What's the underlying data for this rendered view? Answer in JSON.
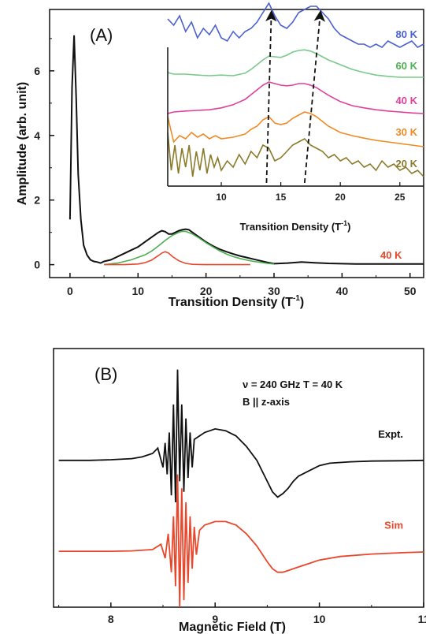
{
  "colors": {
    "black": "#111111",
    "red": "#e8472b",
    "green": "#4caf50",
    "light_green": "#78c98a",
    "blue": "#4a5fd0",
    "magenta": "#e0409a",
    "orange": "#f08a24",
    "olive": "#8a7a2a",
    "label_80K": "#4a5fd0",
    "label_60K": "#4caf50",
    "label_40K": "#e0409a",
    "label_30K": "#f08a24",
    "label_20K": "#8a7a2a"
  },
  "chart_data": [
    {
      "id": "A_main",
      "type": "line",
      "panel_label": "(A)",
      "xlabel": "Transition Density (T",
      "xlabel_sup": "-1",
      "xlabel_end": ")",
      "ylabel": "Amplitude (arb. unit)",
      "xlim": [
        -3,
        52
      ],
      "ylim": [
        -0.4,
        7.9
      ],
      "xticks": [
        0,
        10,
        20,
        30,
        40,
        50
      ],
      "yticks": [
        0,
        2,
        4,
        6
      ],
      "annotation": "40 K",
      "series": [
        {
          "color": "black",
          "x": [
            0,
            0.3,
            0.6,
            0.9,
            1.2,
            1.6,
            2.0,
            2.5,
            3.0,
            3.5,
            4.0,
            4.5,
            5.0,
            6,
            7,
            8,
            9,
            10,
            11,
            12,
            13,
            13.5,
            14,
            14.5,
            15,
            15.5,
            16,
            16.5,
            17,
            17.5,
            18,
            19,
            20,
            21,
            22,
            23,
            24,
            25,
            26,
            27,
            28,
            29,
            30,
            32,
            34,
            36,
            38,
            40,
            42,
            44,
            46,
            48,
            50,
            52
          ],
          "y": [
            1.4,
            5.5,
            7.1,
            5.2,
            2.8,
            1.4,
            0.6,
            0.3,
            0.15,
            0.1,
            0.08,
            0.05,
            0.1,
            0.15,
            0.25,
            0.35,
            0.45,
            0.55,
            0.7,
            0.85,
            1.0,
            1.05,
            1.02,
            0.95,
            0.95,
            1.0,
            1.05,
            1.08,
            1.1,
            1.08,
            1.0,
            0.85,
            0.7,
            0.58,
            0.48,
            0.4,
            0.33,
            0.27,
            0.22,
            0.17,
            0.12,
            0.07,
            0.03,
            0.05,
            0.08,
            0.06,
            0.04,
            0.03,
            0.02,
            0.02,
            0.02,
            0.02,
            0.02,
            0.02
          ]
        },
        {
          "color": "green",
          "x": [
            5,
            7,
            9,
            11,
            12,
            13,
            14,
            15,
            16,
            16.5,
            17,
            18,
            19,
            20,
            21,
            22,
            23,
            24,
            25,
            26,
            27,
            28,
            29,
            30
          ],
          "y": [
            0.0,
            0.05,
            0.15,
            0.3,
            0.42,
            0.58,
            0.75,
            0.9,
            1.0,
            1.03,
            1.03,
            0.95,
            0.82,
            0.68,
            0.55,
            0.43,
            0.33,
            0.25,
            0.19,
            0.14,
            0.1,
            0.07,
            0.04,
            0.02
          ]
        },
        {
          "color": "red",
          "x": [
            5,
            8,
            10,
            11,
            12,
            13,
            13.5,
            14,
            14.5,
            15,
            16,
            17,
            18,
            20,
            22,
            24,
            26.5
          ],
          "y": [
            0.0,
            0.0,
            0.02,
            0.06,
            0.14,
            0.28,
            0.36,
            0.4,
            0.36,
            0.26,
            0.12,
            0.04,
            0.01,
            0.0,
            0.0,
            0.0,
            0.0
          ]
        }
      ]
    },
    {
      "id": "A_inset",
      "type": "line",
      "xlabel": "Transition Density (T",
      "xlabel_sup": "-1",
      "xlabel_end": ")",
      "xlim": [
        5.5,
        27
      ],
      "ylim": [
        0,
        5.6
      ],
      "xticks": [
        10,
        15,
        20,
        25
      ],
      "series": [
        {
          "name": "80 K",
          "color": "blue",
          "offset": 4.4,
          "x": [
            5.5,
            6,
            6.5,
            7,
            7.5,
            8,
            8.5,
            9,
            9.5,
            10,
            10.5,
            11,
            11.5,
            12,
            12.5,
            13,
            13.5,
            14,
            14.5,
            15,
            15.5,
            16,
            16.5,
            17,
            17.5,
            18,
            18.5,
            19,
            19.5,
            20,
            20.5,
            21,
            21.5,
            22,
            22.5,
            23,
            23.5,
            24,
            24.5,
            25,
            25.5,
            26,
            26.5,
            27
          ],
          "y": [
            0.9,
            0.7,
            1.0,
            0.5,
            0.8,
            0.3,
            0.6,
            0.4,
            0.7,
            0.3,
            0.2,
            0.5,
            0.3,
            0.5,
            0.6,
            0.8,
            1.1,
            1.4,
            1.0,
            0.7,
            0.6,
            0.8,
            1.1,
            1.2,
            1.3,
            1.3,
            1.1,
            0.9,
            0.6,
            0.4,
            0.3,
            0.2,
            0.1,
            0.1,
            0.0,
            0.1,
            0.0,
            0.2,
            0.1,
            0.0,
            0.1,
            0.2,
            0.0,
            0.1
          ]
        },
        {
          "name": "60 K",
          "color": "light_green",
          "offset": 3.4,
          "x": [
            5.5,
            6,
            7,
            8,
            9,
            10,
            11,
            12,
            12.5,
            13,
            13.5,
            14,
            14.5,
            15,
            15.5,
            16,
            16.5,
            17,
            17.5,
            18,
            18.5,
            19,
            20,
            21,
            22,
            23,
            24,
            25,
            26,
            27
          ],
          "y": [
            0.2,
            0.15,
            0.15,
            0.12,
            0.1,
            0.12,
            0.1,
            0.18,
            0.3,
            0.45,
            0.6,
            0.72,
            0.7,
            0.68,
            0.75,
            0.85,
            0.9,
            0.92,
            0.88,
            0.8,
            0.7,
            0.6,
            0.45,
            0.3,
            0.2,
            0.12,
            0.08,
            0.05,
            0.05,
            0.05
          ]
        },
        {
          "name": "40 K",
          "color": "magenta",
          "offset": 2.3,
          "x": [
            5.5,
            6,
            7,
            8,
            9,
            10,
            11,
            12,
            12.5,
            13,
            13.5,
            14,
            14.5,
            15,
            15.5,
            16,
            16.5,
            17,
            17.5,
            18,
            18.5,
            19,
            20,
            21,
            22,
            23,
            24,
            25,
            26,
            27
          ],
          "y": [
            0.0,
            0.05,
            0.08,
            0.1,
            0.12,
            0.18,
            0.28,
            0.45,
            0.6,
            0.75,
            0.9,
            1.0,
            0.95,
            0.9,
            0.88,
            0.9,
            0.95,
            0.95,
            0.9,
            0.82,
            0.7,
            0.58,
            0.38,
            0.25,
            0.18,
            0.12,
            0.08,
            0.05,
            0.02,
            0.0
          ]
        },
        {
          "name": "30 K",
          "color": "orange",
          "offset": 1.3,
          "x": [
            5.5,
            6,
            6.5,
            7,
            7.5,
            8,
            8.5,
            9,
            9.5,
            10,
            11,
            12,
            12.5,
            13,
            13.5,
            14,
            14.5,
            15,
            15.5,
            16,
            16.5,
            17,
            17.5,
            18,
            18.5,
            19,
            20,
            21,
            22,
            23,
            24,
            25,
            26,
            27
          ],
          "y": [
            0.9,
            0.1,
            0.3,
            0.2,
            0.4,
            0.25,
            0.35,
            0.2,
            0.3,
            0.2,
            0.25,
            0.35,
            0.5,
            0.6,
            0.8,
            0.9,
            0.7,
            0.65,
            0.7,
            0.85,
            0.95,
            1.05,
            1.0,
            0.9,
            0.75,
            0.6,
            0.4,
            0.3,
            0.22,
            0.15,
            0.1,
            0.05,
            0.0,
            -0.05
          ]
        },
        {
          "name": "20 K",
          "color": "olive",
          "offset": 0.3,
          "x": [
            5.5,
            5.8,
            6.1,
            6.4,
            6.7,
            7.0,
            7.3,
            7.6,
            7.9,
            8.2,
            8.5,
            8.8,
            9.1,
            9.4,
            9.7,
            10.0,
            10.5,
            11,
            11.5,
            12,
            12.5,
            13,
            13.5,
            14,
            14.5,
            15,
            15.5,
            16,
            16.5,
            17,
            17.5,
            18,
            18.5,
            19,
            19.5,
            20,
            20.5,
            21,
            21.5,
            22,
            22.5,
            23,
            23.5,
            24,
            24.5,
            25,
            25.5,
            26,
            26.5,
            27
          ],
          "y": [
            1.4,
            0.2,
            1.0,
            0.1,
            0.9,
            0.3,
            1.0,
            0.0,
            0.8,
            0.2,
            0.9,
            0.1,
            0.7,
            0.3,
            0.6,
            0.2,
            0.5,
            0.3,
            0.7,
            0.4,
            0.8,
            0.6,
            1.0,
            0.9,
            0.5,
            0.6,
            0.8,
            1.0,
            1.1,
            1.2,
            1.0,
            0.9,
            0.8,
            0.6,
            0.7,
            0.5,
            0.6,
            0.4,
            0.5,
            0.3,
            0.4,
            0.2,
            0.5,
            0.3,
            0.4,
            0.2,
            0.3,
            0.1,
            0.2,
            0.0
          ]
        }
      ],
      "arrows": [
        {
          "from": [
            13.8,
            0.1
          ],
          "to": [
            14.2,
            5.4
          ]
        },
        {
          "from": [
            17.0,
            0.1
          ],
          "to": [
            18.3,
            5.4
          ]
        }
      ]
    },
    {
      "id": "B",
      "type": "line",
      "panel_label": "(B)",
      "xlabel": "Magnetic Field (T)",
      "xlim": [
        7.45,
        11
      ],
      "ylim": [
        -4.2,
        3.2
      ],
      "xticks": [
        8,
        9,
        10,
        11
      ],
      "annotation_line1": "ν = 240 GHz    T = 40 K",
      "annotation_line2": "B || z-axis",
      "series": [
        {
          "name": "Expt.",
          "color": "black",
          "offset": 0.0,
          "x": [
            7.5,
            7.8,
            8.0,
            8.2,
            8.3,
            8.4,
            8.45,
            8.5,
            8.52,
            8.54,
            8.56,
            8.58,
            8.6,
            8.62,
            8.64,
            8.66,
            8.68,
            8.7,
            8.72,
            8.74,
            8.76,
            8.78,
            8.8,
            8.85,
            8.9,
            8.95,
            9.0,
            9.1,
            9.2,
            9.3,
            9.4,
            9.5,
            9.55,
            9.6,
            9.65,
            9.7,
            9.75,
            9.8,
            9.9,
            10.0,
            10.1,
            10.3,
            10.5,
            10.8,
            11.0
          ],
          "y": [
            0.0,
            0.0,
            0.02,
            0.05,
            0.1,
            0.2,
            0.35,
            -0.2,
            0.5,
            -0.4,
            0.8,
            -1.0,
            1.6,
            -1.2,
            2.6,
            -0.6,
            1.6,
            -0.9,
            1.2,
            -0.5,
            0.8,
            -0.2,
            0.6,
            0.7,
            0.8,
            0.85,
            0.9,
            0.85,
            0.7,
            0.4,
            0.0,
            -0.6,
            -0.9,
            -1.05,
            -0.95,
            -0.8,
            -0.6,
            -0.45,
            -0.3,
            -0.15,
            -0.08,
            -0.04,
            -0.02,
            -0.01,
            0.0
          ]
        },
        {
          "name": "Sim",
          "color": "red",
          "offset": -2.6,
          "x": [
            7.5,
            7.8,
            8.0,
            8.2,
            8.4,
            8.48,
            8.52,
            8.55,
            8.58,
            8.6,
            8.62,
            8.64,
            8.66,
            8.68,
            8.7,
            8.72,
            8.74,
            8.76,
            8.78,
            8.8,
            8.82,
            8.85,
            8.9,
            8.95,
            9.0,
            9.1,
            9.2,
            9.3,
            9.4,
            9.5,
            9.55,
            9.6,
            9.65,
            9.7,
            9.8,
            9.9,
            10.0,
            10.2,
            10.5,
            10.8,
            11.0
          ],
          "y": [
            0.0,
            0.0,
            0.0,
            0.01,
            0.05,
            0.2,
            -0.2,
            0.5,
            -0.6,
            1.0,
            -1.0,
            2.2,
            -1.6,
            1.8,
            -1.4,
            1.4,
            -0.9,
            1.0,
            -0.5,
            0.7,
            -0.1,
            0.6,
            0.75,
            0.8,
            0.85,
            0.85,
            0.75,
            0.5,
            0.15,
            -0.3,
            -0.5,
            -0.6,
            -0.6,
            -0.55,
            -0.45,
            -0.35,
            -0.25,
            -0.15,
            -0.08,
            -0.04,
            -0.02
          ]
        }
      ]
    }
  ]
}
